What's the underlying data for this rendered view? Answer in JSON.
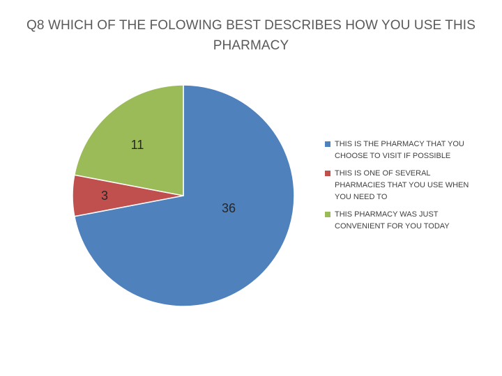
{
  "chart_data": {
    "type": "pie",
    "title": "Q8 WHICH OF THE FOLOWING BEST DESCRIBES HOW YOU USE THIS PHARMACY",
    "categories": [
      "THIS IS THE PHARMACY THAT YOU CHOOSE TO VISIT IF POSSIBLE",
      "THIS IS ONE OF SEVERAL PHARMACIES THAT YOU USE WHEN YOU NEED TO",
      "THIS PHARMACY WAS JUST CONVENIENT FOR YOU TODAY"
    ],
    "values": [
      36,
      3,
      11
    ],
    "data_labels": [
      "36",
      "3",
      "11"
    ],
    "colors": [
      "#4F81BD",
      "#C0504D",
      "#9BBB59"
    ],
    "legend_position": "right",
    "start": "top-clockwise"
  }
}
